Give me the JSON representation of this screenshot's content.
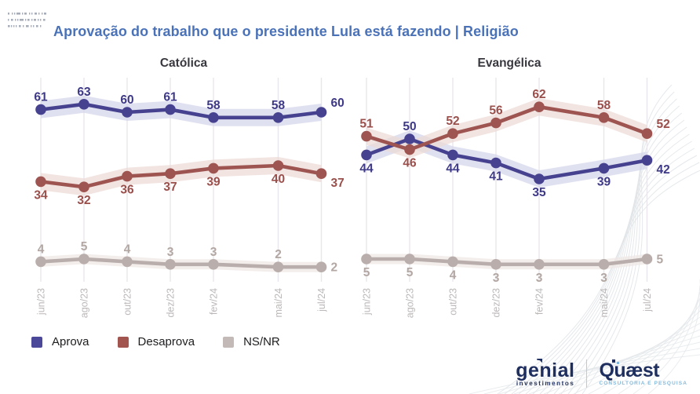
{
  "header": {
    "title": "Aprovação do trabalho que o presidente Lula está fazendo | Religião"
  },
  "legend": [
    {
      "label": "Aprova",
      "color": "#4c4899"
    },
    {
      "label": "Desaprova",
      "color": "#a2544f"
    },
    {
      "label": "NS/NR",
      "color": "#c3bab7"
    }
  ],
  "footer": {
    "genial": {
      "name": "genial",
      "sub": "investimentos"
    },
    "quaest": {
      "name": "Quæst",
      "sub": "CONSULTORIA E PESQUISA"
    }
  },
  "colors": {
    "title_blue": "#4a72b8",
    "gridline": "#e9e7eb",
    "tick_label": "#bcb8b8",
    "chart_title": "#38383f"
  },
  "chart_data": [
    {
      "type": "line",
      "title": "Católica",
      "x": [
        "jun/23",
        "ago/23",
        "out/23",
        "dez/23",
        "fev/24",
        "mai/24",
        "jul/24"
      ],
      "x_month_offsets": [
        0,
        2,
        4,
        6,
        8,
        11,
        13
      ],
      "ylim": [
        0,
        70
      ],
      "grid": "vertical-only",
      "legend_position": "bottom-left",
      "series": [
        {
          "name": "Aprova",
          "color": "#474290",
          "band_color": "#d4d6ea",
          "label_color": "#3e3987",
          "values": [
            61,
            63,
            60,
            61,
            58,
            58,
            60
          ],
          "label_sides": [
            "above",
            "above",
            "above",
            "above",
            "above",
            "above",
            "above"
          ]
        },
        {
          "name": "Desaprova",
          "color": "#9e5450",
          "band_color": "#ecd9d6",
          "label_color": "#9a4f4b",
          "values": [
            34,
            32,
            36,
            37,
            39,
            40,
            37
          ],
          "label_sides": [
            "below",
            "below",
            "below",
            "below",
            "below",
            "below",
            "below"
          ]
        },
        {
          "name": "NS/NR",
          "color": "#b9aeab",
          "band_color": "#efe7e4",
          "label_color": "#b2a7a3",
          "values": [
            4,
            5,
            4,
            3,
            3,
            2,
            2
          ],
          "label_sides": [
            "above",
            "above",
            "above",
            "above",
            "above",
            "above",
            "right"
          ]
        }
      ]
    },
    {
      "type": "line",
      "title": "Evangélica",
      "x": [
        "jun/23",
        "ago/23",
        "out/23",
        "dez/23",
        "fev/24",
        "mai/24",
        "jul/24"
      ],
      "x_month_offsets": [
        0,
        2,
        4,
        6,
        8,
        11,
        13
      ],
      "ylim": [
        0,
        70
      ],
      "grid": "vertical-only",
      "legend_position": "bottom-left",
      "series": [
        {
          "name": "Aprova",
          "color": "#474290",
          "band_color": "#d4d6ea",
          "label_color": "#3e3987",
          "values": [
            44,
            50,
            44,
            41,
            35,
            39,
            42
          ],
          "label_sides": [
            "below",
            "above",
            "below",
            "below",
            "below",
            "below",
            "below"
          ]
        },
        {
          "name": "Desaprova",
          "color": "#9e5450",
          "band_color": "#ecd9d6",
          "label_color": "#9a4f4b",
          "values": [
            51,
            46,
            52,
            56,
            62,
            58,
            52
          ],
          "label_sides": [
            "above",
            "below",
            "above",
            "above",
            "above",
            "above",
            "above"
          ]
        },
        {
          "name": "NS/NR",
          "color": "#b9aeab",
          "band_color": "#efe7e4",
          "label_color": "#b2a7a3",
          "values": [
            5,
            5,
            4,
            3,
            3,
            3,
            5
          ],
          "label_sides": [
            "below",
            "below",
            "below",
            "below",
            "below",
            "below",
            "right"
          ]
        }
      ]
    }
  ]
}
